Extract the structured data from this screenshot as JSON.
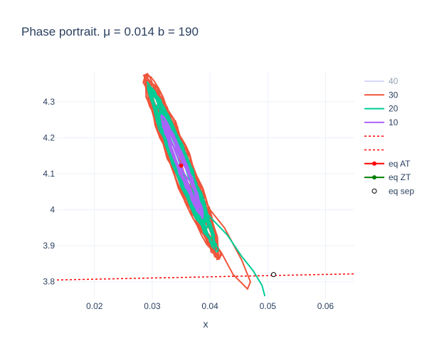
{
  "chart_data": {
    "type": "line",
    "title": "Phase portrait. μ = 0.014 b = 190",
    "xlabel": "x",
    "ylabel": "",
    "xlim": [
      0.0135,
      0.065
    ],
    "ylim": [
      3.752,
      4.385
    ],
    "x_ticks": [
      0.02,
      0.03,
      0.04,
      0.05,
      0.06
    ],
    "x_tick_labels": [
      "0.02",
      "0.03",
      "0.04",
      "0.05",
      "0.06"
    ],
    "y_ticks": [
      3.8,
      3.9,
      4.0,
      4.1,
      4.2,
      4.3
    ],
    "y_tick_labels": [
      "3.8",
      "3.9",
      "4",
      "4.1",
      "4.2",
      "4.3"
    ],
    "grid": true,
    "legend_position": "right",
    "series": [
      {
        "name": "40",
        "color": "#b3b3ff",
        "kind": "trajectory",
        "visible": false
      },
      {
        "name": "30",
        "color": "#ef553b",
        "kind": "trajectory"
      },
      {
        "name": "20",
        "color": "#00cc96",
        "kind": "trajectory"
      },
      {
        "name": "10",
        "color": "#ab63fa",
        "kind": "trajectory"
      },
      {
        "name": "",
        "color": "#ff0000",
        "kind": "separatrix",
        "x": [
          0.0135,
          0.065
        ],
        "y": [
          3.805,
          3.822
        ]
      },
      {
        "name": "",
        "color": "#ff0000",
        "kind": "separatrix",
        "x": [],
        "y": []
      },
      {
        "name": "eq AT",
        "color": "#ff0000",
        "kind": "marker",
        "x": [
          0.035
        ],
        "y": [
          4.123
        ]
      },
      {
        "name": "eq ZT",
        "color": "#008000",
        "kind": "marker",
        "x": [],
        "y": []
      },
      {
        "name": "eq sep",
        "color": "#000000",
        "kind": "open-marker",
        "x": [
          0.051
        ],
        "y": [
          3.82
        ]
      }
    ]
  }
}
